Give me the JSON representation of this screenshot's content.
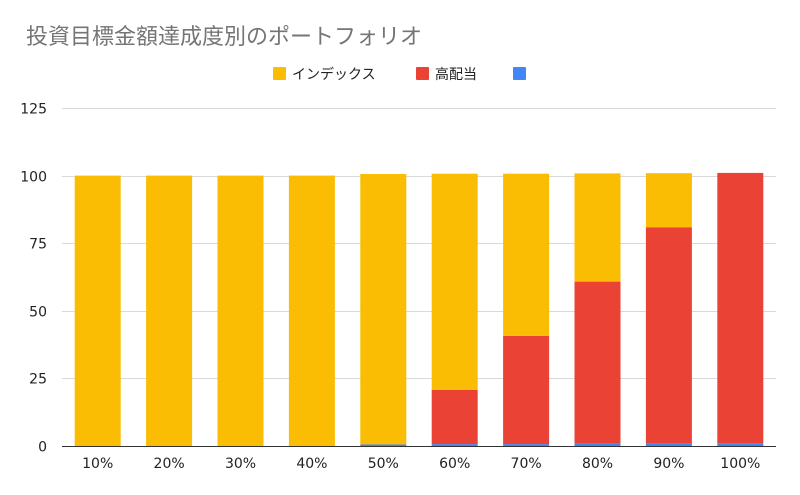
{
  "colors": {
    "index": "#FBBC04",
    "high_dividend": "#EA4335",
    "third": "#4285F4",
    "grid": "#D9D9D9",
    "text": "#222222",
    "title": "#757575"
  },
  "chart_data": {
    "type": "bar",
    "stacked": true,
    "title": "投資目標金額達成度別のポートフォリオ",
    "xlabel": "",
    "ylabel": "",
    "ylim": [
      0,
      125
    ],
    "yticks": [
      0,
      25,
      50,
      75,
      100,
      125
    ],
    "grid": true,
    "legend_position": "top",
    "categories": [
      "10%",
      "20%",
      "30%",
      "40%",
      "50%",
      "60%",
      "70%",
      "80%",
      "90%",
      "100%"
    ],
    "series": [
      {
        "name": "",
        "color": "#4285F4",
        "values": [
          0,
          0,
          0,
          0,
          0.6,
          0.7,
          0.7,
          0.8,
          0.9,
          1.0
        ]
      },
      {
        "name": "高配当",
        "color": "#EA4335",
        "values": [
          0,
          0,
          0,
          0,
          0,
          20,
          40,
          60,
          80,
          100
        ]
      },
      {
        "name": "インデックス",
        "color": "#FBBC04",
        "values": [
          100,
          100,
          100,
          100,
          100,
          80,
          60,
          40,
          20,
          0
        ]
      }
    ],
    "legend": [
      {
        "name": "インデックス",
        "color": "#FBBC04"
      },
      {
        "name": "高配当",
        "color": "#EA4335"
      },
      {
        "name": "",
        "color": "#4285F4"
      }
    ]
  }
}
